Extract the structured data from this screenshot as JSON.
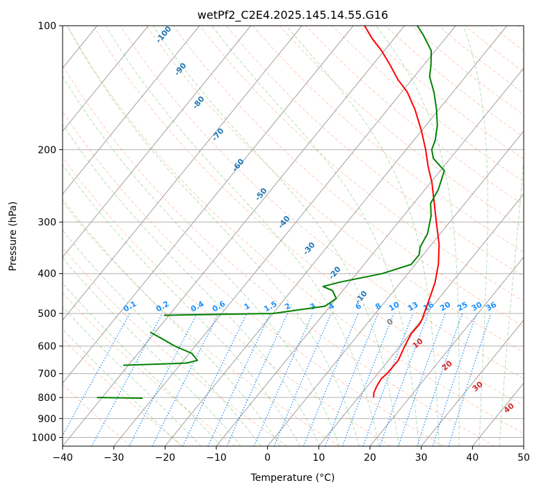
{
  "chart_data": {
    "type": "line",
    "title": "wetPf2_C2E4.2025.145.14.55.G16",
    "xlabel": "Temperature (°C)",
    "ylabel": "Pressure (hPa)",
    "xlim": [
      -40,
      50
    ],
    "ylim": [
      1050,
      100
    ],
    "y_scale": "log",
    "grid": true,
    "x_ticks": [
      -40,
      -30,
      -20,
      -10,
      0,
      10,
      20,
      30,
      40,
      50
    ],
    "y_ticks": [
      100,
      200,
      300,
      400,
      500,
      600,
      700,
      800,
      900,
      1000
    ],
    "series": [
      {
        "role": "temperature",
        "color": "#ff0000",
        "points": [
          {
            "p": 800,
            "t": 13
          },
          {
            "p": 780,
            "t": 12.3
          },
          {
            "p": 750,
            "t": 11.8
          },
          {
            "p": 720,
            "t": 11.5
          },
          {
            "p": 700,
            "t": 11.8
          },
          {
            "p": 650,
            "t": 11.9
          },
          {
            "p": 600,
            "t": 10.9
          },
          {
            "p": 560,
            "t": 10.2
          },
          {
            "p": 530,
            "t": 10.3
          },
          {
            "p": 515,
            "t": 10.0
          },
          {
            "p": 500,
            "t": 9.5
          },
          {
            "p": 460,
            "t": 8.2
          },
          {
            "p": 420,
            "t": 6.7
          },
          {
            "p": 380,
            "t": 4.5
          },
          {
            "p": 340,
            "t": 1.5
          },
          {
            "p": 300,
            "t": -2.6
          },
          {
            "p": 270,
            "t": -6.0
          },
          {
            "p": 240,
            "t": -9.8
          },
          {
            "p": 220,
            "t": -13.0
          },
          {
            "p": 200,
            "t": -16.2
          },
          {
            "p": 180,
            "t": -20.0
          },
          {
            "p": 160,
            "t": -24.6
          },
          {
            "p": 145,
            "t": -28.9
          },
          {
            "p": 135,
            "t": -32.8
          },
          {
            "p": 125,
            "t": -36.4
          },
          {
            "p": 115,
            "t": -40.5
          },
          {
            "p": 108,
            "t": -44.0
          },
          {
            "p": 100,
            "t": -47.8
          }
        ]
      },
      {
        "role": "dewpoint",
        "color": "#008000",
        "segments": [
          [
            {
              "p": 803,
              "t": -32.0
            },
            {
              "p": 800,
              "t": -41.0
            }
          ],
          [
            {
              "p": 668,
              "t": -41.0
            },
            {
              "p": 660,
              "t": -29.0
            },
            {
              "p": 650,
              "t": -27.3
            },
            {
              "p": 625,
              "t": -29.5
            },
            {
              "p": 600,
              "t": -34.0
            },
            {
              "p": 580,
              "t": -37.0
            },
            {
              "p": 555,
              "t": -41.0
            }
          ],
          [
            {
              "p": 505,
              "t": -41.0
            },
            {
              "p": 500,
              "t": -20.0
            },
            {
              "p": 480,
              "t": -11.0
            },
            {
              "p": 460,
              "t": -10.0
            },
            {
              "p": 440,
              "t": -12.0
            },
            {
              "p": 430,
              "t": -14.5
            },
            {
              "p": 420,
              "t": -12.0
            },
            {
              "p": 400,
              "t": -5.0
            },
            {
              "p": 380,
              "t": -0.8
            },
            {
              "p": 360,
              "t": -0.8
            },
            {
              "p": 345,
              "t": -1.8
            },
            {
              "p": 320,
              "t": -2.5
            },
            {
              "p": 290,
              "t": -4.6
            },
            {
              "p": 270,
              "t": -6.7
            },
            {
              "p": 250,
              "t": -7.4
            },
            {
              "p": 225,
              "t": -9.2
            },
            {
              "p": 210,
              "t": -13.3
            },
            {
              "p": 200,
              "t": -15.0
            },
            {
              "p": 190,
              "t": -15.8
            },
            {
              "p": 175,
              "t": -17.7
            },
            {
              "p": 160,
              "t": -20.4
            },
            {
              "p": 145,
              "t": -23.7
            },
            {
              "p": 133,
              "t": -27.0
            },
            {
              "p": 125,
              "t": -28.5
            },
            {
              "p": 115,
              "t": -30.8
            },
            {
              "p": 105,
              "t": -35.0
            },
            {
              "p": 100,
              "t": -37.5
            }
          ]
        ]
      }
    ],
    "mixing_ratio_labels": [
      "0.1",
      "0.2",
      "0.4",
      "0.6",
      "1",
      "1.5",
      "2",
      "3",
      "4",
      "6",
      "8",
      "10",
      "13",
      "16",
      "20",
      "25",
      "30",
      "36"
    ],
    "mixing_ratio_values": [
      0.1,
      0.2,
      0.4,
      0.6,
      1,
      1.5,
      2,
      3,
      4,
      6,
      8,
      10,
      13,
      16,
      20,
      25,
      30,
      36
    ],
    "dry_adiabat_labels": [
      "-100",
      "-90",
      "-80",
      "-70",
      "-60",
      "-50",
      "-40",
      "-30",
      "-20",
      "-10"
    ],
    "moist_adiabat_labels": [
      "0",
      "10",
      "20",
      "30",
      "40"
    ],
    "colors": {
      "isotherm": "#808080",
      "dry_adiabat": "#ff7f50",
      "moist_adiabat": "#2ca02c",
      "mixing_ratio": "#1e90ff",
      "temperature": "#ff0000",
      "dewpoint": "#008000"
    }
  }
}
